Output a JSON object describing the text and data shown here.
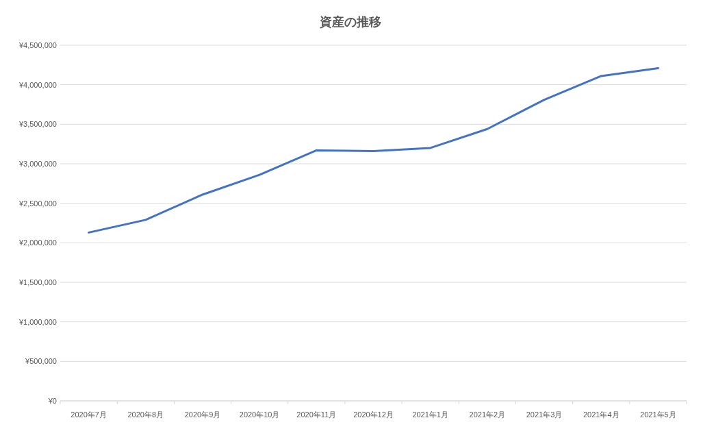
{
  "chart_data": {
    "type": "line",
    "title": "資産の推移",
    "categories": [
      "2020年7月",
      "2020年8月",
      "2020年9月",
      "2020年10月",
      "2020年11月",
      "2020年12月",
      "2021年1月",
      "2021年2月",
      "2021年3月",
      "2021年4月",
      "2021年5月"
    ],
    "series": [
      {
        "color": "#4472c4",
        "values": [
          2130000,
          2290000,
          2610000,
          2860000,
          3170000,
          3160000,
          3200000,
          3440000,
          3810000,
          4110000,
          4210000
        ]
      }
    ],
    "ylim": [
      0,
      4500000
    ],
    "yticks": [
      {
        "value": 0,
        "label": "¥0"
      },
      {
        "value": 500000,
        "label": "¥500,000"
      },
      {
        "value": 1000000,
        "label": "¥1,000,000"
      },
      {
        "value": 1500000,
        "label": "¥1,500,000"
      },
      {
        "value": 2000000,
        "label": "¥2,000,000"
      },
      {
        "value": 2500000,
        "label": "¥2,500,000"
      },
      {
        "value": 3000000,
        "label": "¥3,000,000"
      },
      {
        "value": 3500000,
        "label": "¥3,500,000"
      },
      {
        "value": 4000000,
        "label": "¥4,000,000"
      },
      {
        "value": 4500000,
        "label": "¥4,500,000"
      }
    ],
    "grid": "y",
    "marker": "none",
    "line_style": "solid"
  }
}
